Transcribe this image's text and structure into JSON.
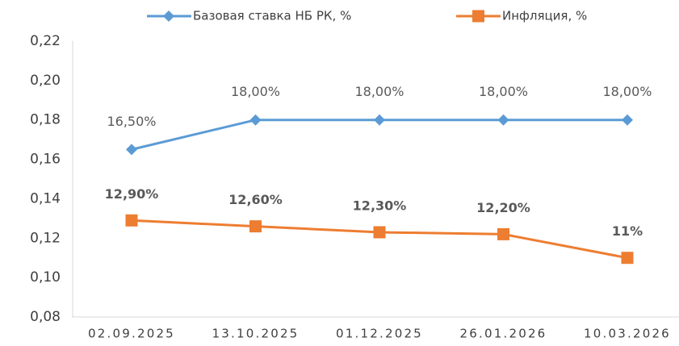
{
  "chart_data": {
    "type": "line",
    "categories": [
      "02.09.2025",
      "13.10.2025",
      "01.12.2025",
      "26.01.2026",
      "10.03.2026"
    ],
    "series": [
      {
        "name": "Базовая ставка НБ РК, %",
        "color": "#5b9bd5",
        "values": [
          0.165,
          0.18,
          0.18,
          0.18,
          0.18
        ],
        "value_labels": [
          "16,50%",
          "18,00%",
          "18,00%",
          "18,00%",
          "18,00%"
        ]
      },
      {
        "name": "Инфляция, %",
        "color": "#ed7d31",
        "values": [
          0.129,
          0.126,
          0.123,
          0.122,
          0.11
        ],
        "value_labels": [
          "12,90%",
          "12,60%",
          "12,30%",
          "12,20%",
          "11%"
        ]
      }
    ],
    "ylim": [
      0.08,
      0.22
    ],
    "yticks": [
      {
        "value": 0.08,
        "label": "0,08"
      },
      {
        "value": 0.1,
        "label": "0,10"
      },
      {
        "value": 0.12,
        "label": "0,12"
      },
      {
        "value": 0.14,
        "label": "0,14"
      },
      {
        "value": 0.16,
        "label": "0,16"
      },
      {
        "value": 0.18,
        "label": "0,18"
      },
      {
        "value": 0.2,
        "label": "0,20"
      },
      {
        "value": 0.22,
        "label": "0,22"
      }
    ],
    "legend": "top"
  }
}
